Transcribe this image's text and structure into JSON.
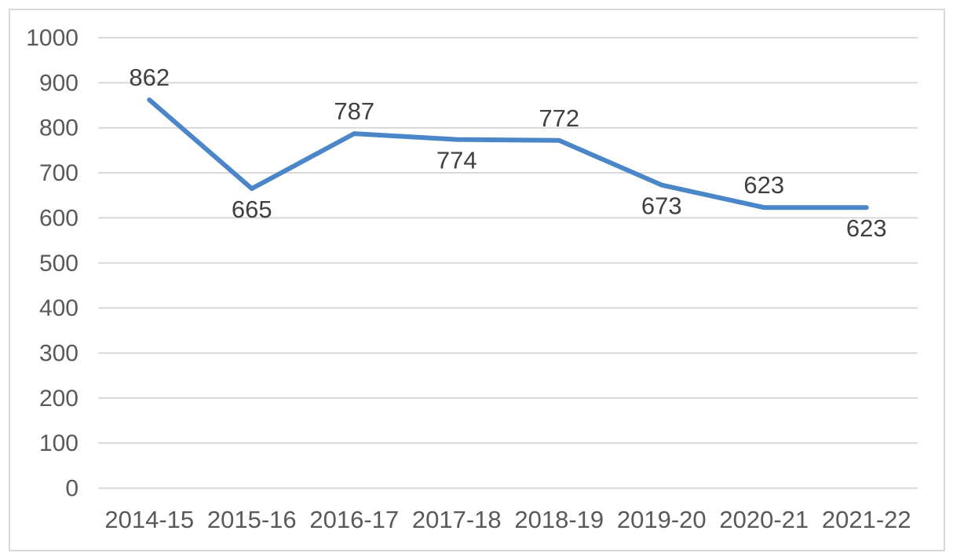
{
  "chart_data": {
    "type": "line",
    "title": "",
    "xlabel": "",
    "ylabel": "",
    "categories": [
      "2014-15",
      "2015-16",
      "2016-17",
      "2017-18",
      "2018-19",
      "2019-20",
      "2020-21",
      "2021-22"
    ],
    "series": [
      {
        "name": "series-1",
        "values": [
          862,
          665,
          787,
          774,
          772,
          673,
          623,
          623
        ],
        "color": "#4A86C8",
        "data_label_positions": [
          "above",
          "below",
          "above",
          "below",
          "above",
          "below",
          "above",
          "below"
        ]
      }
    ],
    "ylim": [
      0,
      1000
    ],
    "yticks": [
      0,
      100,
      200,
      300,
      400,
      500,
      600,
      700,
      800,
      900,
      1000
    ],
    "grid": "horizontal",
    "legend": "none",
    "style": {
      "background": "#FFFFFF",
      "border_color": "#D9D9D9",
      "gridline_color": "#D9D9D9",
      "axis_label_color": "#595959",
      "data_label_color": "#404040",
      "line_width": 6
    }
  }
}
